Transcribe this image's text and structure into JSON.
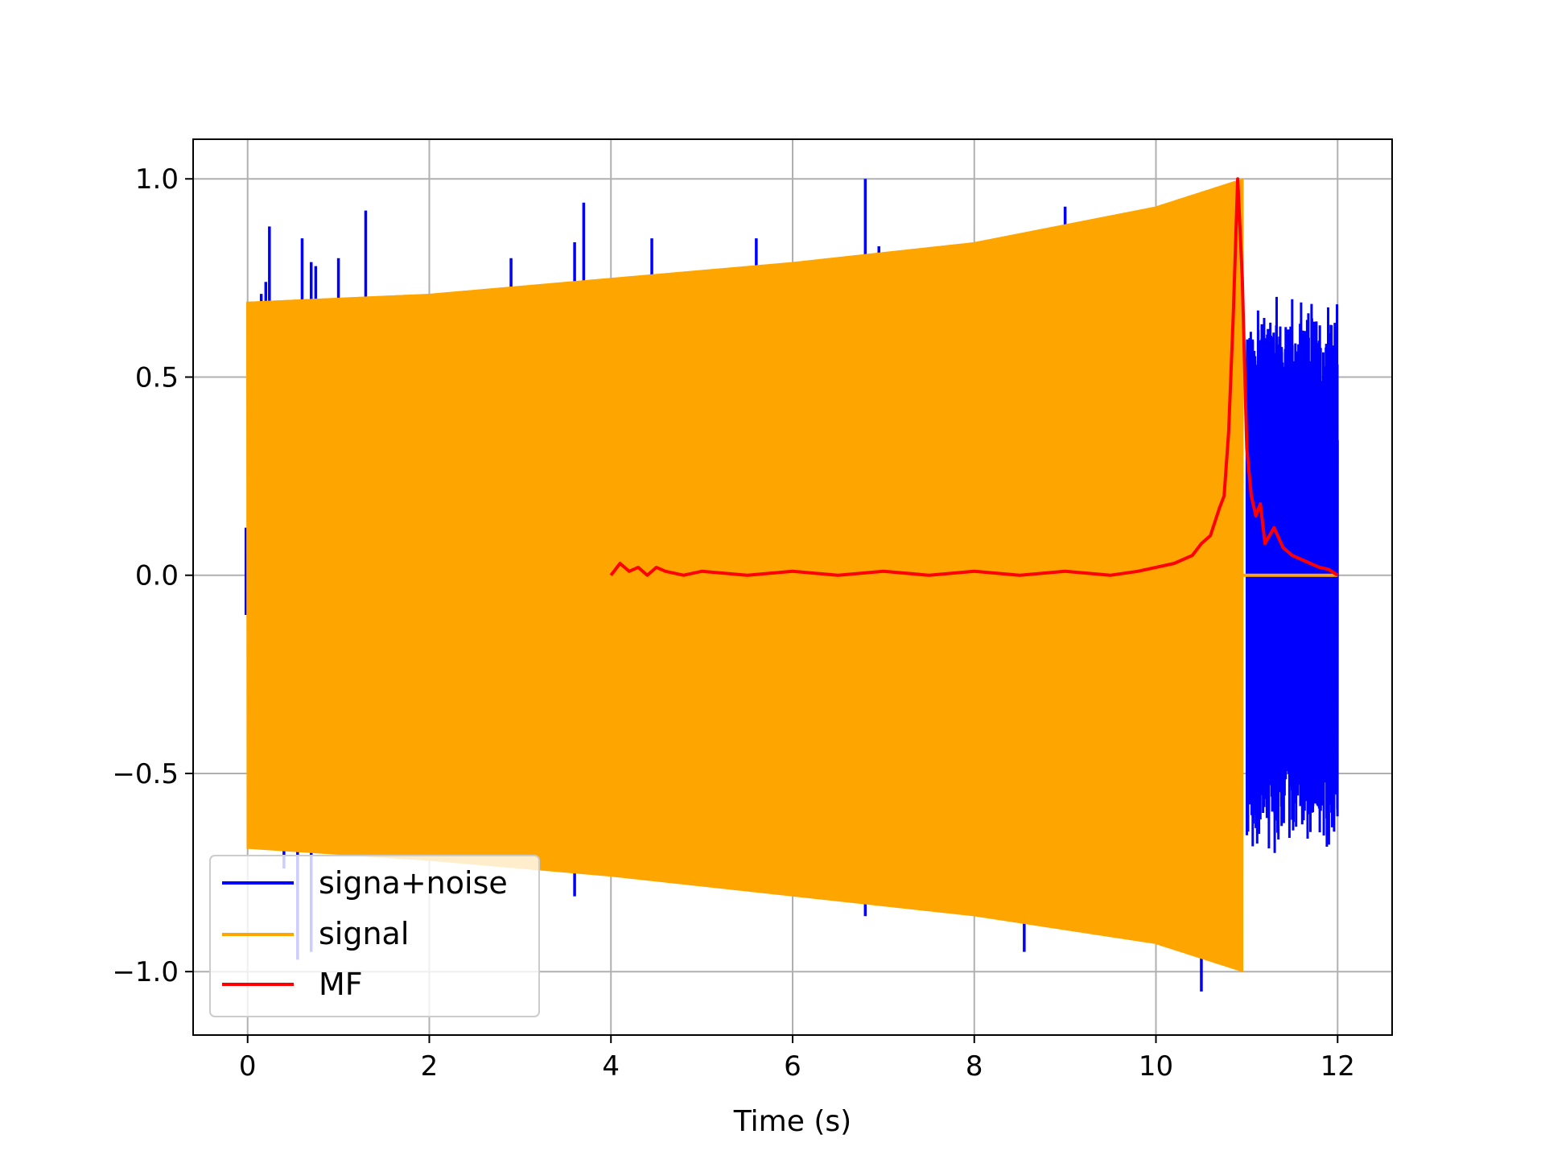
{
  "chart_data": {
    "type": "line",
    "title": "",
    "xlabel": "Time (s)",
    "ylabel": "",
    "xlim": [
      -0.6,
      12.6
    ],
    "ylim": [
      -1.16,
      1.1
    ],
    "xticks": [
      0,
      2,
      4,
      6,
      8,
      10,
      12
    ],
    "xtick_labels": [
      "0",
      "2",
      "4",
      "6",
      "8",
      "10",
      "12"
    ],
    "yticks": [
      -1.0,
      -0.5,
      0.0,
      0.5,
      1.0
    ],
    "ytick_labels": [
      "−1.0",
      "−0.5",
      "0.0",
      "0.5",
      "1.0"
    ],
    "grid": true,
    "legend_position": "lower-left",
    "series": [
      {
        "name": "signa+noise",
        "color": "#0000ff",
        "x_range": [
          0,
          12
        ],
        "noise_spikes": [
          {
            "x": 0.15,
            "y": 0.71
          },
          {
            "x": 0.2,
            "y": 0.74
          },
          {
            "x": 0.24,
            "y": 0.88
          },
          {
            "x": 0.6,
            "y": 0.85
          },
          {
            "x": 0.7,
            "y": 0.79
          },
          {
            "x": 0.75,
            "y": 0.78
          },
          {
            "x": 1.0,
            "y": 0.8
          },
          {
            "x": 1.3,
            "y": 0.92
          },
          {
            "x": 2.9,
            "y": 0.8
          },
          {
            "x": 3.6,
            "y": 0.84
          },
          {
            "x": 3.7,
            "y": 0.94
          },
          {
            "x": 4.45,
            "y": 0.85
          },
          {
            "x": 5.6,
            "y": 0.85
          },
          {
            "x": 6.8,
            "y": 1.0
          },
          {
            "x": 6.95,
            "y": 0.83
          },
          {
            "x": 9.0,
            "y": 0.93
          },
          {
            "x": 0.4,
            "y": -0.74
          },
          {
            "x": 0.55,
            "y": -0.97
          },
          {
            "x": 0.7,
            "y": -0.95
          },
          {
            "x": 3.6,
            "y": -0.81
          },
          {
            "x": 5.6,
            "y": -0.78
          },
          {
            "x": 6.8,
            "y": -0.86
          },
          {
            "x": 8.55,
            "y": -0.95
          },
          {
            "x": 10.5,
            "y": -1.05
          }
        ],
        "tail_noise": {
          "x_range": [
            11.0,
            12.0
          ],
          "amplitude_min": 0.55,
          "amplitude_max": 0.72
        }
      },
      {
        "name": "signal",
        "color": "#ffa500",
        "x_range": [
          0,
          10.95
        ],
        "envelope_upper": [
          [
            0,
            0.69
          ],
          [
            2,
            0.71
          ],
          [
            4,
            0.75
          ],
          [
            6,
            0.79
          ],
          [
            8,
            0.84
          ],
          [
            10,
            0.93
          ],
          [
            10.95,
            1.0
          ]
        ],
        "envelope_lower": [
          [
            0,
            -0.69
          ],
          [
            2,
            -0.72
          ],
          [
            4,
            -0.76
          ],
          [
            6,
            -0.81
          ],
          [
            8,
            -0.86
          ],
          [
            10,
            -0.93
          ],
          [
            10.95,
            -1.0
          ]
        ],
        "after_x": [
          10.95,
          12.0
        ],
        "after_value": 0.0
      },
      {
        "name": "MF",
        "color": "#ff0000",
        "x": [
          4.0,
          4.1,
          4.2,
          4.3,
          4.4,
          4.5,
          4.6,
          4.8,
          5.0,
          5.5,
          6.0,
          6.5,
          7.0,
          7.5,
          8.0,
          8.5,
          9.0,
          9.5,
          9.8,
          10.0,
          10.2,
          10.4,
          10.5,
          10.6,
          10.7,
          10.75,
          10.8,
          10.85,
          10.9,
          10.95,
          11.0,
          11.05,
          11.1,
          11.15,
          11.2,
          11.3,
          11.4,
          11.5,
          11.6,
          11.7,
          11.8,
          11.9,
          12.0
        ],
        "y": [
          0.0,
          0.03,
          0.01,
          0.02,
          0.0,
          0.02,
          0.01,
          0.0,
          0.01,
          0.0,
          0.01,
          0.0,
          0.01,
          0.0,
          0.01,
          0.0,
          0.01,
          0.0,
          0.01,
          0.02,
          0.03,
          0.05,
          0.08,
          0.1,
          0.17,
          0.2,
          0.36,
          0.65,
          1.0,
          0.75,
          0.32,
          0.2,
          0.15,
          0.18,
          0.08,
          0.12,
          0.07,
          0.05,
          0.04,
          0.03,
          0.02,
          0.015,
          0.0
        ]
      }
    ]
  }
}
